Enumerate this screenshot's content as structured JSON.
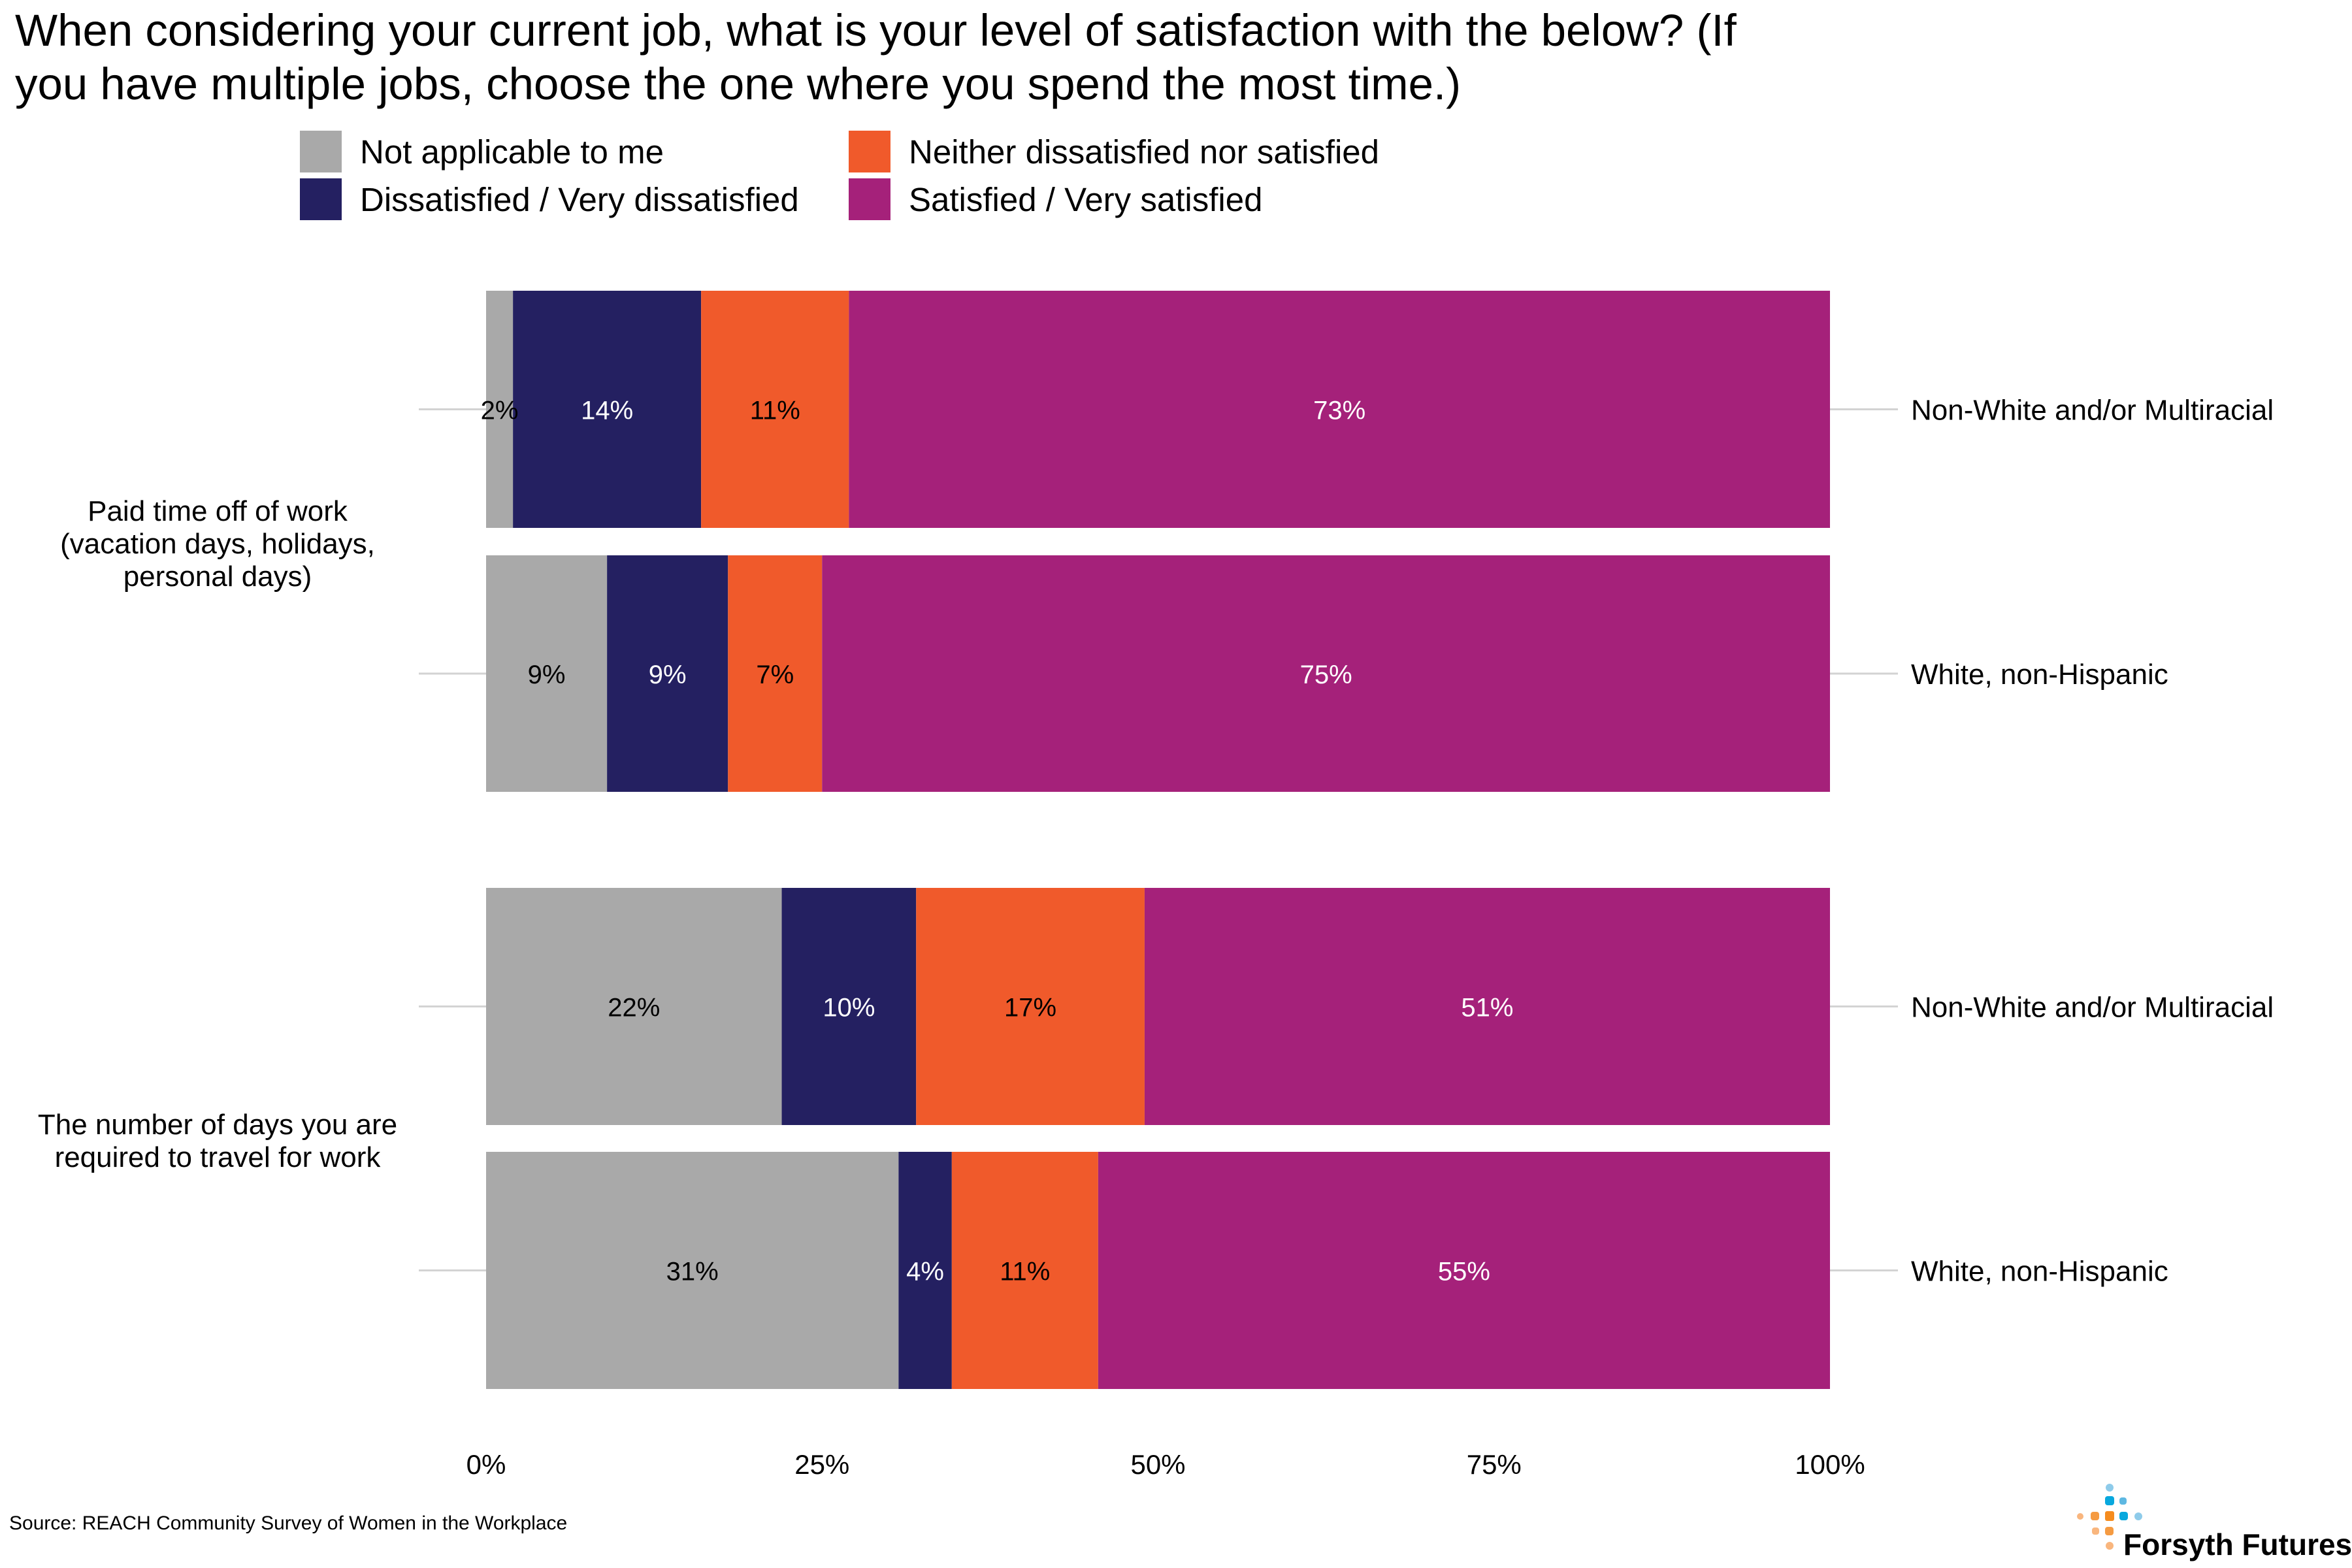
{
  "chart_data": {
    "type": "bar",
    "orientation": "horizontal-stacked",
    "title_lines": [
      "When considering your current job, what is your level of satisfaction with the below? (If",
      "you have multiple jobs, choose the one where you spend the most time.)"
    ],
    "legend": [
      {
        "name": "Not applicable to me",
        "color": "#A9A9A9"
      },
      {
        "name": "Dissatisfied / Very dissatisfied",
        "color": "#242061"
      },
      {
        "name": "Neither dissatisfied nor satisfied",
        "color": "#F05A2B"
      },
      {
        "name": "Satisfied / Very satisfied",
        "color": "#A5217A"
      }
    ],
    "legend_placement": "top",
    "groups": [
      {
        "label_lines": [
          "Paid time off of work",
          "(vacation days, holidays,",
          "personal days)"
        ],
        "rows": [
          {
            "label": "Non-White and/or Multiracial",
            "values": [
              2,
              14,
              11,
              73
            ],
            "labels": [
              "2%",
              "14%",
              "11%",
              "73%"
            ]
          },
          {
            "label": "White, non-Hispanic",
            "values": [
              9,
              9,
              7,
              75
            ],
            "labels": [
              "9%",
              "9%",
              "7%",
              "75%"
            ]
          }
        ]
      },
      {
        "label_lines": [
          "The number of days you are",
          "required to travel for work"
        ],
        "rows": [
          {
            "label": "Non-White and/or Multiracial",
            "values": [
              22,
              10,
              17,
              51
            ],
            "labels": [
              "22%",
              "10%",
              "17%",
              "51%"
            ]
          },
          {
            "label": "White, non-Hispanic",
            "values": [
              31,
              4,
              11,
              55
            ],
            "labels": [
              "31%",
              "4%",
              "11%",
              "55%"
            ]
          }
        ]
      }
    ],
    "xlim": [
      0,
      100
    ],
    "xticks": [
      "0%",
      "25%",
      "50%",
      "75%",
      "100%"
    ],
    "grid": false
  },
  "source": "Source: REACH Community Survey of Women in the Workplace",
  "logo": {
    "text": "Forsyth Futures"
  }
}
